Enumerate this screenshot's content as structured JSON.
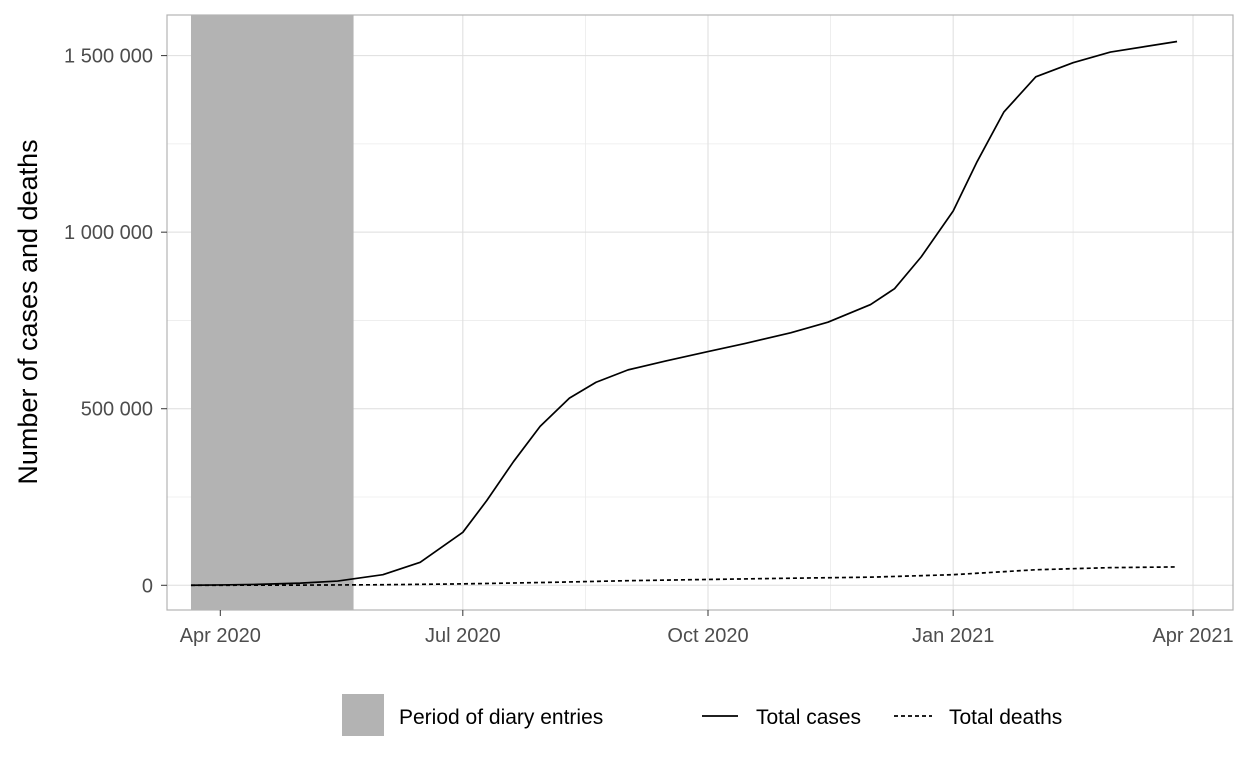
{
  "chart_data": {
    "type": "line",
    "title": "",
    "xlabel": "",
    "ylabel": "Number of cases and deaths",
    "x_type": "date",
    "xlim": [
      "2020-03-12",
      "2021-04-16"
    ],
    "ylim": [
      -70000,
      1615000
    ],
    "x_ticks": [
      {
        "value": "2020-04-01",
        "label": "Apr 2020"
      },
      {
        "value": "2020-07-01",
        "label": "Jul 2020"
      },
      {
        "value": "2020-10-01",
        "label": "Oct 2020"
      },
      {
        "value": "2021-01-01",
        "label": "Jan 2021"
      },
      {
        "value": "2021-04-01",
        "label": "Apr 2021"
      }
    ],
    "x_minor_ticks": [
      "2020-05-16",
      "2020-08-16",
      "2020-11-16",
      "2021-02-15"
    ],
    "y_ticks": [
      {
        "value": 0,
        "label": "0"
      },
      {
        "value": 500000,
        "label": "500 000"
      },
      {
        "value": 1000000,
        "label": "1 000 000"
      },
      {
        "value": 1500000,
        "label": "1 500 000"
      }
    ],
    "y_minor_ticks": [
      250000,
      750000,
      1250000
    ],
    "grid": true,
    "legend_position": "bottom",
    "shaded_region": {
      "name": "Period of diary entries",
      "x_start": "2020-03-21",
      "x_end": "2020-05-21",
      "color": "#b3b3b3"
    },
    "series": [
      {
        "name": "Total cases",
        "style": "solid",
        "color": "#000000",
        "points": [
          [
            "2020-03-21",
            0
          ],
          [
            "2020-04-01",
            1000
          ],
          [
            "2020-04-15",
            2500
          ],
          [
            "2020-05-01",
            6000
          ],
          [
            "2020-05-15",
            12000
          ],
          [
            "2020-06-01",
            30000
          ],
          [
            "2020-06-15",
            65000
          ],
          [
            "2020-07-01",
            150000
          ],
          [
            "2020-07-10",
            240000
          ],
          [
            "2020-07-20",
            350000
          ],
          [
            "2020-07-30",
            450000
          ],
          [
            "2020-08-10",
            530000
          ],
          [
            "2020-08-20",
            575000
          ],
          [
            "2020-09-01",
            610000
          ],
          [
            "2020-09-15",
            635000
          ],
          [
            "2020-10-01",
            662000
          ],
          [
            "2020-10-15",
            685000
          ],
          [
            "2020-11-01",
            715000
          ],
          [
            "2020-11-15",
            745000
          ],
          [
            "2020-12-01",
            795000
          ],
          [
            "2020-12-10",
            840000
          ],
          [
            "2020-12-20",
            930000
          ],
          [
            "2021-01-01",
            1060000
          ],
          [
            "2021-01-10",
            1200000
          ],
          [
            "2021-01-20",
            1340000
          ],
          [
            "2021-02-01",
            1440000
          ],
          [
            "2021-02-15",
            1480000
          ],
          [
            "2021-03-01",
            1510000
          ],
          [
            "2021-03-26",
            1540000
          ]
        ]
      },
      {
        "name": "Total deaths",
        "style": "dashed",
        "color": "#000000",
        "points": [
          [
            "2020-03-21",
            0
          ],
          [
            "2020-05-01",
            500
          ],
          [
            "2020-06-01",
            1500
          ],
          [
            "2020-07-01",
            4000
          ],
          [
            "2020-08-01",
            8000
          ],
          [
            "2020-09-01",
            13000
          ],
          [
            "2020-10-01",
            16500
          ],
          [
            "2020-11-01",
            20000
          ],
          [
            "2020-12-01",
            23000
          ],
          [
            "2021-01-01",
            30000
          ],
          [
            "2021-02-01",
            44000
          ],
          [
            "2021-03-01",
            50000
          ],
          [
            "2021-03-26",
            52000
          ]
        ]
      }
    ]
  }
}
